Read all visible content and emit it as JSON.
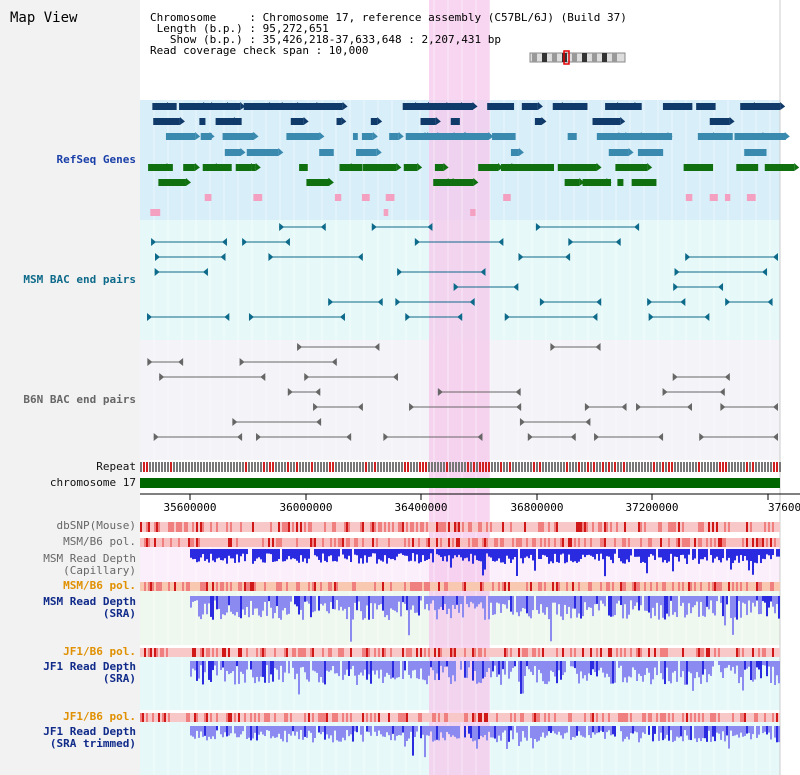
{
  "page": {
    "title": "Map View",
    "info_lines": [
      "Chromosome     : Chromosome 17, reference assembly (C57BL/6J) (Build 37)",
      " Length (b.p.) : 95,272,651",
      "   Show (b.p.) : 35,426,218-37,633,648 : 2,207,431 bp",
      "Read coverage check span : 10,000"
    ]
  },
  "tracks": {
    "refseq": "RefSeq Genes",
    "msm_bac": "MSM BAC end pairs",
    "b6n_bac": "B6N BAC end pairs",
    "repeat": "Repeat",
    "chromosome": "chromosome 17",
    "dbsnp": "dbSNP(Mouse)",
    "msm_b6_pol_1": "MSM/B6 pol.",
    "msm_read_depth_cap": "MSM Read Depth\n(Capillary)",
    "msm_b6_pol_2": "MSM/B6 pol.",
    "msm_read_depth_sra": "MSM Read Depth\n(SRA)",
    "jf1_b6_pol_1": "JF1/B6 pol.",
    "jf1_read_depth_sra": "JF1 Read Depth\n(SRA)",
    "jf1_b6_pol_2": "JF1/B6 pol.",
    "jf1_read_depth_trim": "JF1 Read Depth\n(SRA trimmed)"
  },
  "axis": {
    "ticks": [
      "35600000",
      "36000000",
      "36400000",
      "36800000",
      "37200000",
      "37600"
    ]
  },
  "colors": {
    "refseq_bg": "#d8eef8",
    "bac_bg": "#e6f8f8",
    "b6n_bg": "#f4f4f8",
    "highlight": "#f5c8ec",
    "chromosome": "#006600",
    "gene_dark": "#103a6a",
    "gene_mid": "#3a8ab0",
    "gene_green": "#107010",
    "gene_pink": "#f4a0c0",
    "bac_teal": "#0e6a8a",
    "bac_gray": "#666666",
    "depth_blue": "#2a2ae0",
    "depth_light": "#8a8af0",
    "pol_red": "#e03030"
  }
}
